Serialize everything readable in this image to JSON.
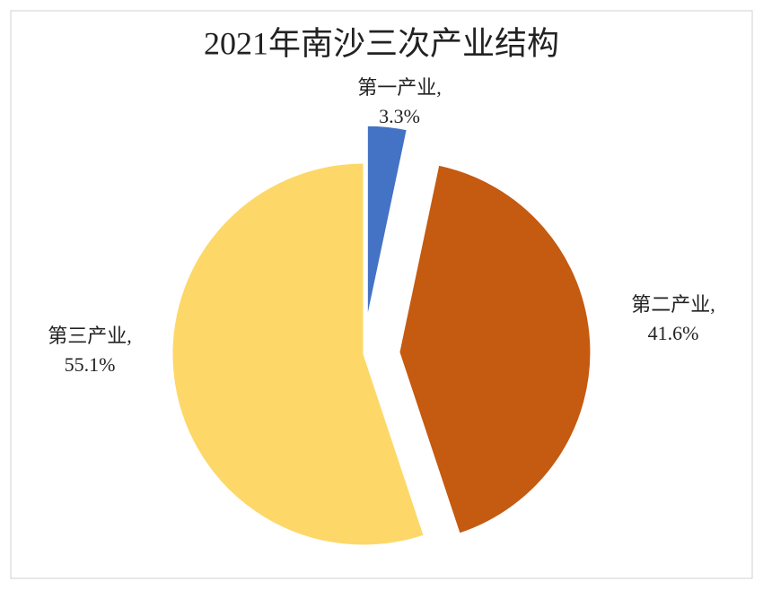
{
  "chart_data": {
    "type": "pie",
    "title": "2021年南沙三次产业结构",
    "categories": [
      "第一产业,",
      "第二产业,",
      "第三产业,"
    ],
    "values": [
      3.3,
      41.6,
      55.1
    ],
    "value_labels": [
      "3.3%",
      "41.6%",
      "55.1%"
    ],
    "colors": [
      "#4472c4",
      "#c55a11",
      "#fdd868"
    ]
  }
}
